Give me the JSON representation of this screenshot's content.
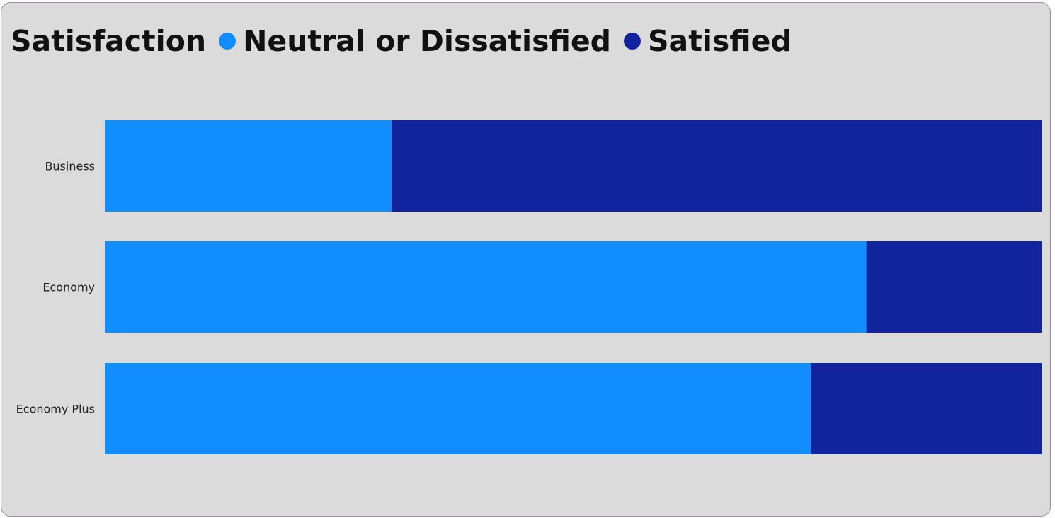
{
  "chart_data": {
    "type": "bar",
    "orientation": "horizontal",
    "stacked": "percent",
    "legend_title": "Satisfaction",
    "legend_position": "top-left",
    "categories": [
      "Business",
      "Economy",
      "Economy Plus"
    ],
    "series": [
      {
        "name": "Neutral or Dissatisfied",
        "color": "#118dff",
        "values": [
          30.6,
          81.3,
          75.4
        ]
      },
      {
        "name": "Satisfied",
        "color": "#12239e",
        "values": [
          69.4,
          18.7,
          24.6
        ]
      }
    ],
    "xlim": [
      0,
      100
    ],
    "grid": false
  }
}
